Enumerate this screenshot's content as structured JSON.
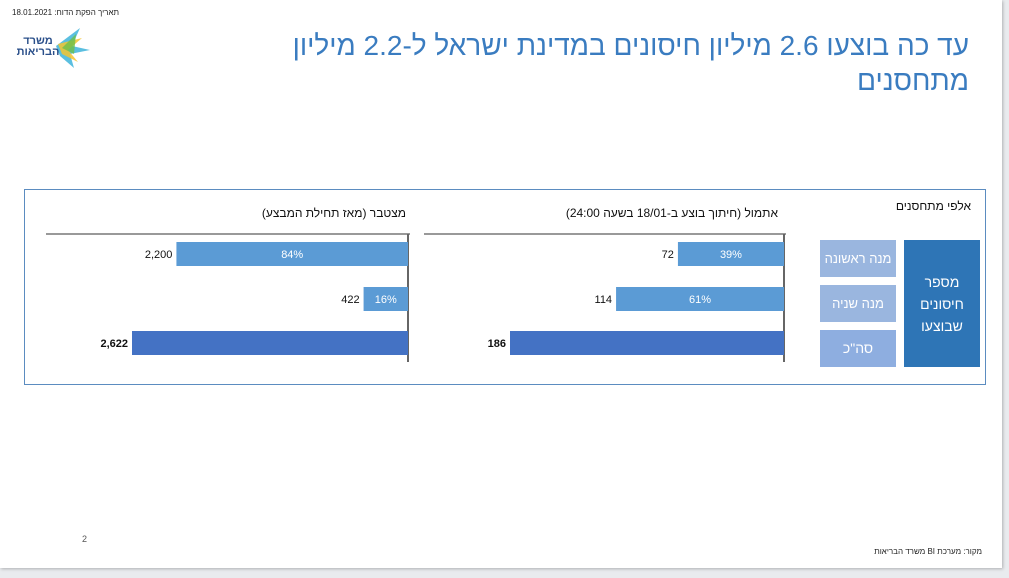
{
  "header": {
    "report_date": "תאריך הפקת הדוח: 18.01.2021",
    "logo_text": "משרד הבריאות",
    "title": "עד כה בוצעו 2.6 מיליון חיסונים במדינת ישראל ל-2.2 מיליון מתחסנים"
  },
  "panel": {
    "units_label": "אלפי מתחסנים",
    "legend": {
      "main": "מספר חיסונים שבוצעו",
      "first_dose": "מנה ראשונה",
      "second_dose": "מנה שניה",
      "total": "סה\"כ"
    }
  },
  "footer": {
    "source": "מקור: מערכת BI משרד הבריאות",
    "page_number": "2"
  },
  "colors": {
    "bar_light": "#5b9bd5",
    "bar_total": "#4472c4",
    "title_blue": "#3a7cc0"
  },
  "chart_data": [
    {
      "type": "bar",
      "orientation": "horizontal",
      "title": "אתמול (חיתוך בוצע ב-18/01 בשעה 24:00)",
      "categories": [
        "מנה ראשונה",
        "מנה שניה",
        "סה\"כ"
      ],
      "values": [
        72,
        114,
        186
      ],
      "value_labels": [
        "72",
        "114",
        "186"
      ],
      "percent_labels": [
        "39%",
        "61%",
        ""
      ],
      "bold": [
        false,
        false,
        true
      ],
      "xlim": [
        0,
        186
      ]
    },
    {
      "type": "bar",
      "orientation": "horizontal",
      "title": "מצטבר (מאז תחילת המבצע)",
      "categories": [
        "מנה ראשונה",
        "מנה שניה",
        "סה\"כ"
      ],
      "values": [
        2200,
        422,
        2622
      ],
      "value_labels": [
        "2,200",
        "422",
        "2,622"
      ],
      "percent_labels": [
        "84%",
        "16%",
        ""
      ],
      "bold": [
        false,
        false,
        true
      ],
      "xlim": [
        0,
        2622
      ]
    }
  ]
}
